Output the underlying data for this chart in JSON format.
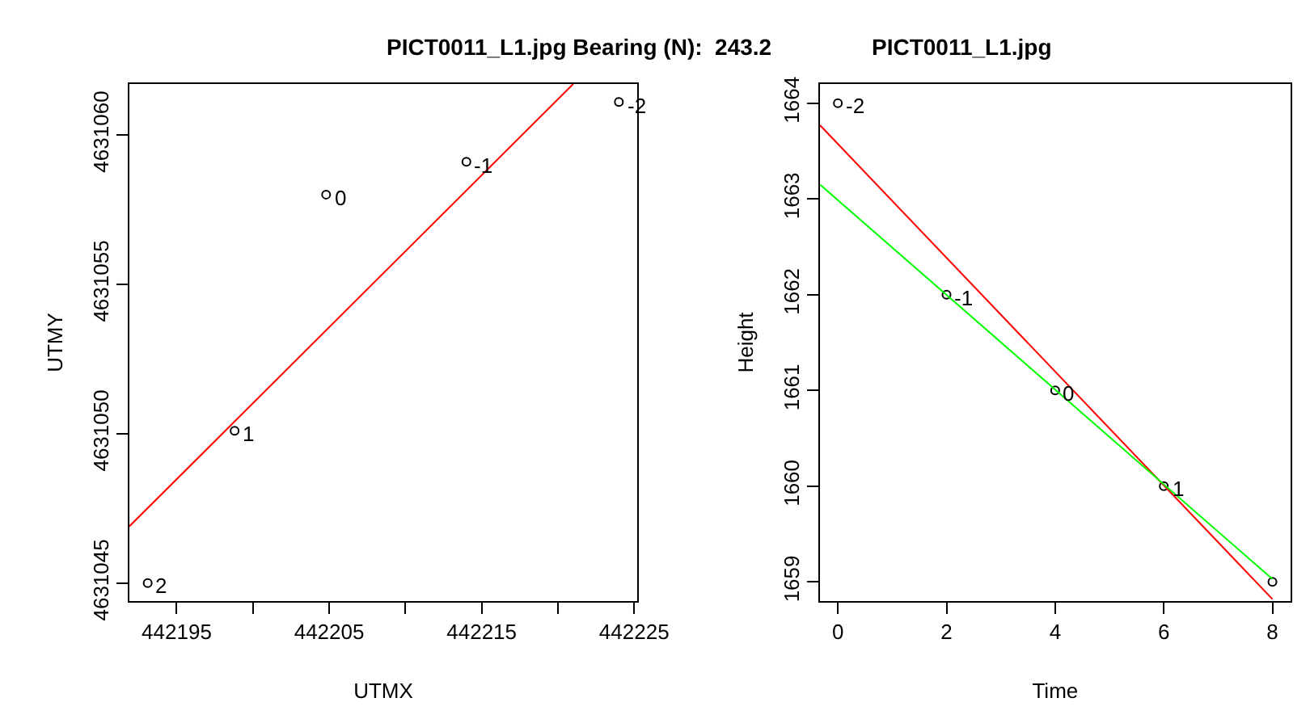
{
  "chart_data": [
    {
      "type": "scatter",
      "title": "PICT0011_L1.jpg Bearing (N):  243.2",
      "xlabel": "UTMX",
      "ylabel": "UTMY",
      "xlim": [
        442191.9,
        442225.2
      ],
      "ylim": [
        4631044.4,
        4631061.7
      ],
      "xticks": [
        442195,
        {
          "value": 442200,
          "label": null
        },
        442205,
        {
          "value": 442210,
          "label": null
        },
        442215,
        {
          "value": 442220,
          "label": null
        },
        442225
      ],
      "yticks": [
        4631045,
        4631050,
        4631055,
        4631060
      ],
      "series": [
        {
          "marker": "circle",
          "color": "#000000",
          "x": [
            442193.1,
            442198.8,
            442204.8,
            442214.0,
            442224.0
          ],
          "values": [
            4631045.0,
            4631050.1,
            4631058.0,
            4631059.1,
            4631061.1
          ]
        },
        {
          "type": "line",
          "color": "#ff0000",
          "x": [
            442191.9,
            442221.0
          ],
          "values": [
            4631046.9,
            4631061.7
          ]
        }
      ],
      "annotations": [
        {
          "text": "2",
          "x": 442193.1,
          "y": 4631045.0
        },
        {
          "text": "1",
          "x": 442198.8,
          "y": 4631050.1
        },
        {
          "text": "0",
          "x": 442204.8,
          "y": 4631058.0
        },
        {
          "text": "-1",
          "x": 442214.0,
          "y": 4631059.1
        },
        {
          "text": "-2",
          "x": 442224.0,
          "y": 4631061.1
        }
      ]
    },
    {
      "type": "scatter",
      "title": "PICT0011_L1.jpg",
      "xlabel": "Time",
      "ylabel": "Height",
      "xlim": [
        -0.33,
        8.33
      ],
      "ylim": [
        1658.8,
        1664.2
      ],
      "xticks": [
        0,
        2,
        4,
        6,
        8
      ],
      "yticks": [
        1659,
        1660,
        1661,
        1662,
        1663,
        1664
      ],
      "series": [
        {
          "marker": "circle",
          "color": "#000000",
          "x": [
            0,
            2,
            4,
            6,
            8
          ],
          "values": [
            1664,
            1662,
            1661,
            1660,
            1659
          ]
        },
        {
          "type": "line",
          "color": "#ff0000",
          "x": [
            -0.33,
            8.0
          ],
          "values": [
            1663.77,
            1658.82
          ]
        },
        {
          "type": "line",
          "color": "#00ff00",
          "x": [
            -0.33,
            8.0
          ],
          "values": [
            1663.15,
            1659.03
          ]
        }
      ],
      "annotations": [
        {
          "text": "-2",
          "x": 0,
          "y": 1664
        },
        {
          "text": "-1",
          "x": 2,
          "y": 1662
        },
        {
          "text": "0",
          "x": 4,
          "y": 1661
        },
        {
          "text": "1",
          "x": 6,
          "y": 1660
        }
      ]
    }
  ]
}
